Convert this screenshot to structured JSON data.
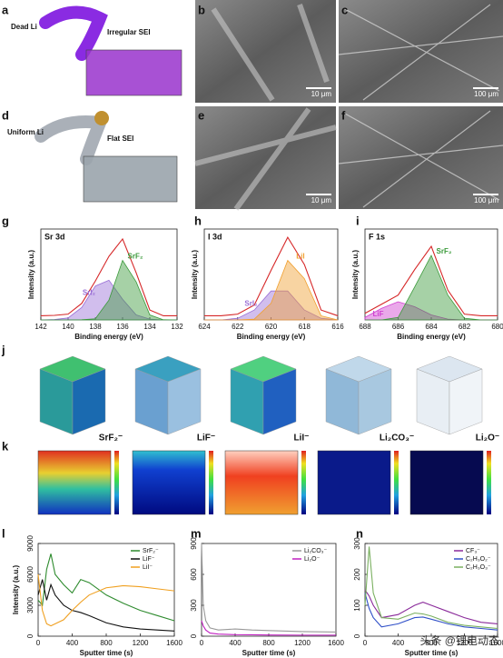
{
  "figure": {
    "panel_letters": [
      "a",
      "b",
      "c",
      "d",
      "e",
      "f",
      "g",
      "h",
      "i",
      "j",
      "k",
      "l",
      "m",
      "n"
    ],
    "a_labels": [
      "Dead Li",
      "Irregular SEI"
    ],
    "d_labels": [
      "Uniform Li",
      "Flat SEI"
    ],
    "scale_bars": [
      "10 μm",
      "100 μm",
      "10 μm",
      "100 μm"
    ],
    "j_labels": [
      "SrF₂⁻",
      "LiF⁻",
      "LiI⁻",
      "Li₂CO₃⁻",
      "Li₂O⁻"
    ],
    "watermark": "头条 @锂电动态"
  },
  "chart_data": [
    {
      "type": "xps",
      "title": "Sr 3d",
      "xlabel": "Binding energy (eV)",
      "ylabel": "Intensity (a.u.)",
      "x": [
        142,
        141,
        140,
        139,
        138,
        137,
        136,
        135,
        134,
        133,
        132
      ],
      "xlim": [
        142,
        132
      ],
      "xticks": [
        142,
        140,
        138,
        136,
        134,
        132
      ],
      "ylim": [
        0,
        110
      ],
      "series": [
        {
          "color": "#d62728",
          "values": [
            5,
            5.5,
            7,
            20,
            47,
            77,
            98,
            57,
            12,
            5,
            5
          ]
        },
        {
          "name": "SrI₂",
          "color": "#9a6fd6",
          "values": [
            0,
            0.5,
            2.4,
            15,
            41,
            48,
            25,
            6,
            1,
            0,
            0
          ]
        },
        {
          "name": "SrF₂",
          "color": "#3a9a3a",
          "values": [
            0,
            0,
            0,
            0.3,
            1.4,
            24,
            72,
            46,
            6,
            0.2,
            0
          ]
        }
      ]
    },
    {
      "type": "xps",
      "title": "I 3d",
      "xlabel": "Binding energy (eV)",
      "ylabel": "Intensity (a.u.)",
      "x": [
        624,
        623,
        622,
        621,
        620,
        619,
        618,
        617,
        616
      ],
      "xlim": [
        624,
        616
      ],
      "xticks": [
        624,
        622,
        620,
        618,
        616
      ],
      "ylim": [
        0,
        110
      ],
      "series": [
        {
          "color": "#d62728",
          "values": [
            5,
            5,
            7,
            18,
            60,
            100,
            67,
            12,
            5
          ]
        },
        {
          "name": "SrI₂",
          "color": "#9a6fd6",
          "values": [
            0,
            0,
            2,
            12,
            35,
            35,
            12,
            2,
            0
          ]
        },
        {
          "name": "LiI",
          "color": "#f0a030",
          "values": [
            0,
            0,
            0,
            1,
            20,
            72,
            50,
            5,
            0
          ]
        }
      ]
    },
    {
      "type": "xps",
      "title": "F 1s",
      "xlabel": "Binding energy (eV)",
      "ylabel": "Intensity (a.u.)",
      "x": [
        688,
        687,
        686,
        685,
        684,
        683,
        682,
        681,
        680
      ],
      "xlim": [
        688,
        680
      ],
      "xticks": [
        688,
        686,
        684,
        682,
        680
      ],
      "ylim": [
        0,
        110
      ],
      "series": [
        {
          "color": "#d62728",
          "values": [
            8,
            19,
            30,
            61,
            89,
            36,
            7,
            5,
            5
          ]
        },
        {
          "name": "LiF",
          "color": "#d040d0",
          "values": [
            3,
            14,
            22,
            16,
            6,
            1,
            0,
            0,
            0
          ]
        },
        {
          "name": "SrF₂",
          "color": "#3a9a3a",
          "values": [
            0,
            0,
            3,
            40,
            78,
            30,
            2,
            0,
            0
          ]
        }
      ]
    },
    {
      "type": "line",
      "xlabel": "Sputter time (s)",
      "ylabel": "Intensity (a.u.)",
      "x": [
        0,
        50,
        100,
        150,
        200,
        300,
        400,
        500,
        600,
        800,
        1000,
        1200,
        1400,
        1600
      ],
      "xlim": [
        0,
        1600
      ],
      "xticks": [
        0,
        400,
        800,
        1200,
        1600
      ],
      "ylim": [
        0,
        9000
      ],
      "yticks": [
        0,
        3000,
        6000,
        9000
      ],
      "series": [
        {
          "name": "SrF₂⁻",
          "color": "#2e8b2e",
          "values": [
            3500,
            3000,
            6500,
            8000,
            6000,
            5000,
            4200,
            5500,
            5200,
            4000,
            3200,
            2500,
            2000,
            1500
          ]
        },
        {
          "name": "LiF⁻",
          "color": "#111111",
          "values": [
            4000,
            5500,
            3500,
            5000,
            4000,
            3000,
            2500,
            2300,
            2000,
            1300,
            900,
            700,
            600,
            500
          ]
        },
        {
          "name": "LiI⁻",
          "color": "#f0a020",
          "values": [
            6000,
            2500,
            1200,
            1000,
            1200,
            1600,
            2500,
            3300,
            4000,
            4700,
            4900,
            4800,
            4600,
            4400
          ]
        }
      ]
    },
    {
      "type": "line",
      "xlabel": "Sputter time (s)",
      "x": [
        0,
        20,
        50,
        100,
        200,
        400,
        600,
        800,
        1200,
        1600
      ],
      "xlim": [
        0,
        1600
      ],
      "xticks": [
        0,
        400,
        800,
        1200,
        1600
      ],
      "ylim": [
        0,
        900
      ],
      "yticks": [
        0,
        300,
        600,
        900
      ],
      "series": [
        {
          "name": "Li₂CO₃⁻",
          "color": "#999999",
          "values": [
            900,
            300,
            150,
            80,
            60,
            70,
            60,
            55,
            45,
            40
          ]
        },
        {
          "name": "Li₂O⁻",
          "color": "#c020c0",
          "values": [
            150,
            100,
            60,
            30,
            20,
            15,
            14,
            12,
            10,
            10
          ]
        }
      ]
    },
    {
      "type": "line",
      "xlabel": "Sputter time (s)",
      "x": [
        0,
        50,
        100,
        200,
        400,
        600,
        700,
        800,
        1000,
        1200,
        1400,
        1600
      ],
      "xlim": [
        0,
        1600
      ],
      "xticks": [
        0,
        400,
        800,
        1200,
        1600
      ],
      "ylim": [
        0,
        300
      ],
      "yticks": [
        0,
        100,
        200,
        300
      ],
      "series": [
        {
          "name": "CF₃⁻",
          "color": "#8a2a9a",
          "values": [
            150,
            130,
            100,
            60,
            70,
            100,
            110,
            100,
            80,
            60,
            45,
            40
          ]
        },
        {
          "name": "C₂H₃O₂⁻",
          "color": "#3050c8",
          "values": [
            140,
            90,
            60,
            30,
            40,
            60,
            62,
            55,
            40,
            30,
            25,
            20
          ]
        },
        {
          "name": "C₂H₃O₃⁻",
          "color": "#7ab060",
          "values": [
            100,
            290,
            140,
            60,
            55,
            75,
            72,
            65,
            45,
            35,
            30,
            25
          ]
        }
      ]
    }
  ]
}
